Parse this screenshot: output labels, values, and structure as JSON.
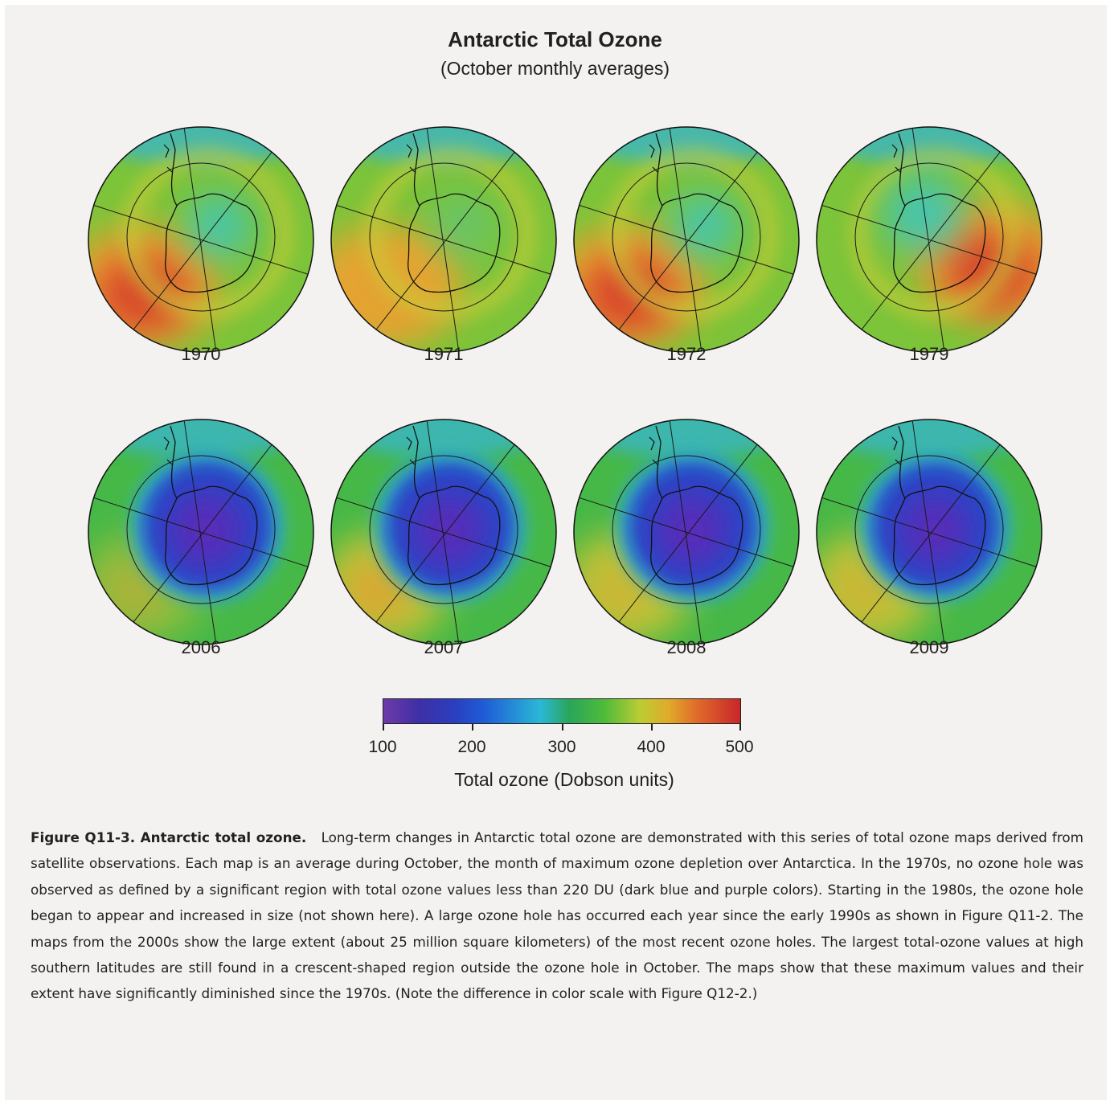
{
  "figure": {
    "title": "Antarctic Total Ozone",
    "subtitle": "(October monthly averages)"
  },
  "maps": [
    {
      "year": "1970",
      "hole": 0
    },
    {
      "year": "1971",
      "hole": 0
    },
    {
      "year": "1972",
      "hole": 0
    },
    {
      "year": "1979",
      "hole": 0.15
    },
    {
      "year": "2006",
      "hole": 1
    },
    {
      "year": "2007",
      "hole": 0.9
    },
    {
      "year": "2008",
      "hole": 0.95
    },
    {
      "year": "2009",
      "hole": 0.85
    }
  ],
  "colorbar": {
    "ticks": [
      "100",
      "200",
      "300",
      "400",
      "500"
    ],
    "label": "Total ozone (Dobson units)",
    "colors": [
      "#6e3aa8",
      "#2a3fbf",
      "#2ab8d6",
      "#4fbb3a",
      "#e0aa2a",
      "#c8262a"
    ]
  },
  "caption": {
    "label": "Figure Q11-3.  Antarctic total ozone.",
    "text": "Long-term changes in Antarctic total ozone are demonstrated with this series of total ozone maps derived from satellite observations.  Each map is an average during October, the month of maximum ozone depletion over Antarctica.  In the 1970s, no ozone hole was observed as defined by a significant region with total ozone values less than 220 DU (dark blue and purple colors).  Starting in the 1980s, the ozone hole began to appear and increased in size (not shown here).  A large ozone hole has occurred each year since the early 1990s as shown in Figure Q11-2.  The maps from the 2000s show the large extent (about 25 million square kilometers) of the most recent ozone holes.  The largest total-ozone values at high southern latitudes are still found in a crescent-shaped region outside the ozone hole in October.  The maps show that these maximum values and their extent have significantly diminished since the 1970s.  (Note the difference in color scale with Figure Q12-2.)"
  }
}
